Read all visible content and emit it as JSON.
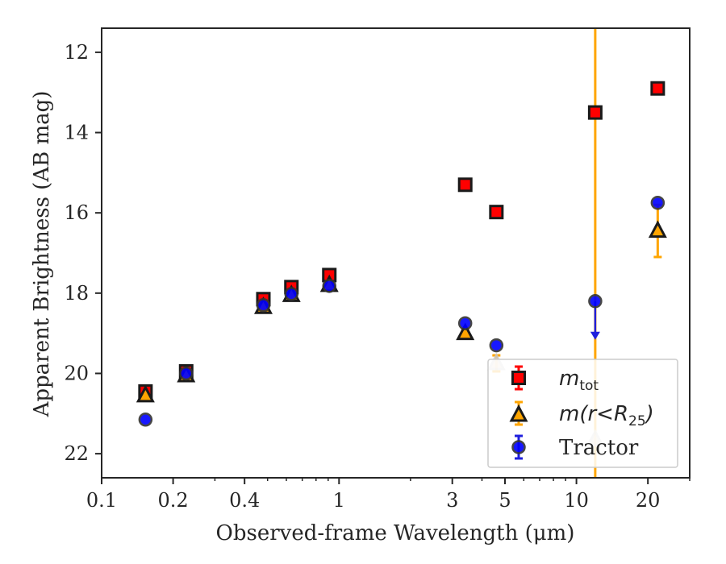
{
  "chart_data": {
    "type": "scatter",
    "xlabel": "Observed-frame Wavelength (μm)",
    "ylabel": "Apparent Brightness (AB mag)",
    "xscale": "log",
    "xlim": [
      0.1,
      30
    ],
    "ylim": [
      22.6,
      11.4
    ],
    "y_inverted": true,
    "x_ticks": [
      0.1,
      0.2,
      0.4,
      1,
      3,
      5,
      10,
      20
    ],
    "x_tick_labels": [
      "0.1",
      "0.2",
      "0.4",
      "1",
      "3",
      "5",
      "10",
      "20"
    ],
    "y_ticks": [
      12,
      14,
      16,
      18,
      20,
      22
    ],
    "y_tick_labels": [
      "12",
      "14",
      "16",
      "18",
      "20",
      "22"
    ],
    "grid": false,
    "legend_position": "lower-right",
    "series": [
      {
        "name": "m_tot",
        "legend_label": "m",
        "legend_sub": "tot",
        "marker": "square",
        "color": "#ff0000",
        "edgecolor": "#1a1a1a",
        "x": [
          0.153,
          0.227,
          0.48,
          0.63,
          0.91,
          3.4,
          4.6,
          12,
          22
        ],
        "y": [
          20.45,
          19.95,
          18.15,
          17.85,
          17.55,
          15.3,
          15.98,
          13.5,
          12.9
        ]
      },
      {
        "name": "m(r<R25)",
        "legend_label": "m(r<R",
        "legend_sub": "25",
        "legend_suffix": ")",
        "marker": "triangle",
        "color": "#ffa500",
        "edgecolor": "#1a1a1a",
        "x": [
          0.153,
          0.227,
          0.48,
          0.63,
          0.91,
          3.4,
          4.6,
          12,
          22
        ],
        "y": [
          20.55,
          20.05,
          18.35,
          18.05,
          17.8,
          19.0,
          19.75,
          21.65,
          16.45
        ],
        "yerr": [
          0.05,
          0.05,
          0.03,
          0.03,
          0.03,
          0.1,
          0.2,
          11,
          0.65
        ],
        "faded_points": [
          6,
          7
        ]
      },
      {
        "name": "Tractor",
        "legend_label": "Tractor",
        "marker": "circle",
        "color": "#0000ff",
        "edgecolor": "#333333",
        "x": [
          0.153,
          0.227,
          0.48,
          0.63,
          0.91,
          3.4,
          4.6,
          12,
          22
        ],
        "y": [
          21.15,
          20.0,
          18.3,
          18.02,
          17.82,
          18.75,
          19.3,
          18.2,
          15.75
        ],
        "upper_limit_points": [
          7
        ]
      }
    ]
  }
}
